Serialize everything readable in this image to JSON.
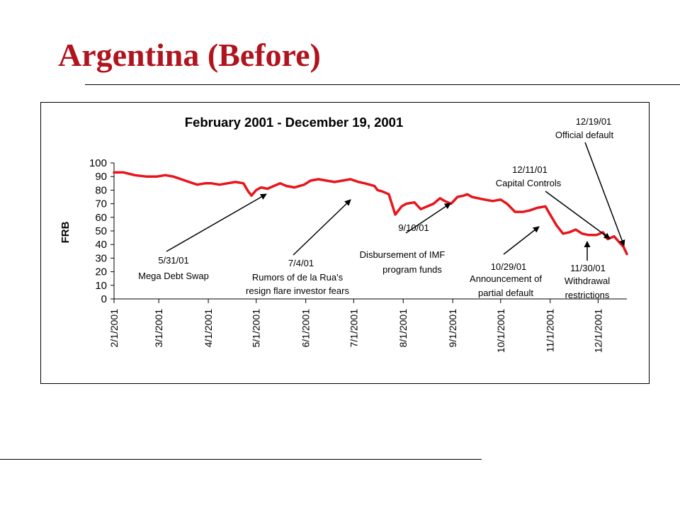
{
  "slide": {
    "title": "Argentina (Before)",
    "title_color": "#b0141e"
  },
  "chart_data": {
    "type": "line",
    "title": "February 2001 - December 19, 2001",
    "ylabel": "FRB",
    "xlabel": "",
    "ylim": [
      0,
      100
    ],
    "yticks": [
      "100",
      "90",
      "80",
      "70",
      "60",
      "50",
      "40",
      "30",
      "20",
      "10",
      "0"
    ],
    "xlim": [
      "2/1/2001",
      "12/19/2001"
    ],
    "xticks": [
      "2/1/2001",
      "3/1/2001",
      "4/1/2001",
      "5/1/2001",
      "6/1/2001",
      "7/1/2001",
      "8/1/2001",
      "9/1/2001",
      "10/1/2001",
      "11/1/2001",
      "12/1/2001"
    ],
    "grid": false,
    "legend": "none",
    "line_color": "#e8141b",
    "series": [
      {
        "x": [
          "2/1/2001",
          "2/7/2001",
          "2/14/2001",
          "2/21/2001",
          "2/28/2001",
          "3/5/2001",
          "3/10/2001",
          "3/15/2001",
          "3/20/2001",
          "3/25/2001",
          "3/30/2001",
          "4/3/2001",
          "4/8/2001",
          "4/13/2001",
          "4/18/2001",
          "4/23/2001",
          "4/26/2001",
          "4/28/2001",
          "5/1/2001",
          "5/4/2001",
          "5/8/2001",
          "5/12/2001",
          "5/16/2001",
          "5/20/2001",
          "5/25/2001",
          "5/31/2001",
          "6/4/2001",
          "6/9/2001",
          "6/14/2001",
          "6/19/2001",
          "6/24/2001",
          "6/29/2001",
          "7/4/2001",
          "7/8/2001",
          "7/11/2001",
          "7/14/2001",
          "7/16/2001",
          "7/19/2001",
          "7/23/2001",
          "7/27/2001",
          "7/31/2001",
          "8/3/2001",
          "8/8/2001",
          "8/12/2001",
          "8/16/2001",
          "8/20/2001",
          "8/24/2001",
          "8/27/2001",
          "8/31/2001",
          "9/4/2001",
          "9/8/2001",
          "9/10/2001",
          "9/13/2001",
          "9/17/2001",
          "9/21/2001",
          "9/26/2001",
          "10/1/2001",
          "10/5/2001",
          "10/10/2001",
          "10/15/2001",
          "10/19/2001",
          "10/24/2001",
          "10/29/2001",
          "11/1/2001",
          "11/5/2001",
          "11/9/2001",
          "11/13/2001",
          "11/17/2001",
          "11/21/2001",
          "11/25/2001",
          "11/30/2001",
          "12/4/2001",
          "12/7/2001",
          "12/11/2001",
          "12/14/2001",
          "12/17/2001",
          "12/19/2001"
        ],
        "values": [
          93,
          93,
          91,
          90,
          90,
          91,
          90,
          88,
          86,
          84,
          85,
          85,
          84,
          85,
          86,
          85,
          79,
          76,
          80,
          82,
          81,
          83,
          85,
          83,
          82,
          84,
          87,
          88,
          87,
          86,
          87,
          88,
          86,
          85,
          84,
          83,
          80,
          79,
          77,
          62,
          68,
          70,
          71,
          66,
          68,
          70,
          74,
          72,
          70,
          75,
          76,
          77,
          75,
          74,
          73,
          72,
          73,
          70,
          64,
          64,
          65,
          67,
          68,
          62,
          54,
          48,
          49,
          51,
          48,
          47,
          47,
          49,
          44,
          46,
          42,
          38,
          33
        ]
      }
    ],
    "annotations": [
      {
        "date": "5/31/01",
        "text": "Mega Debt Swap"
      },
      {
        "date": "7/4/01",
        "text1": "Rumors of de la Rua's",
        "text2": "resign flare investor fears"
      },
      {
        "date": "9/10/01",
        "text1": "Disbursement of IMF",
        "text2": "program funds"
      },
      {
        "date": "10/29/01",
        "text1": "Announcement of",
        "text2": "partial default"
      },
      {
        "date": "11/30/01",
        "text1": "Withdrawal",
        "text2": "restrictions"
      },
      {
        "date": "12/11/01",
        "text": "Capital Controls"
      },
      {
        "date": "12/19/01",
        "text": "Official default"
      }
    ]
  }
}
